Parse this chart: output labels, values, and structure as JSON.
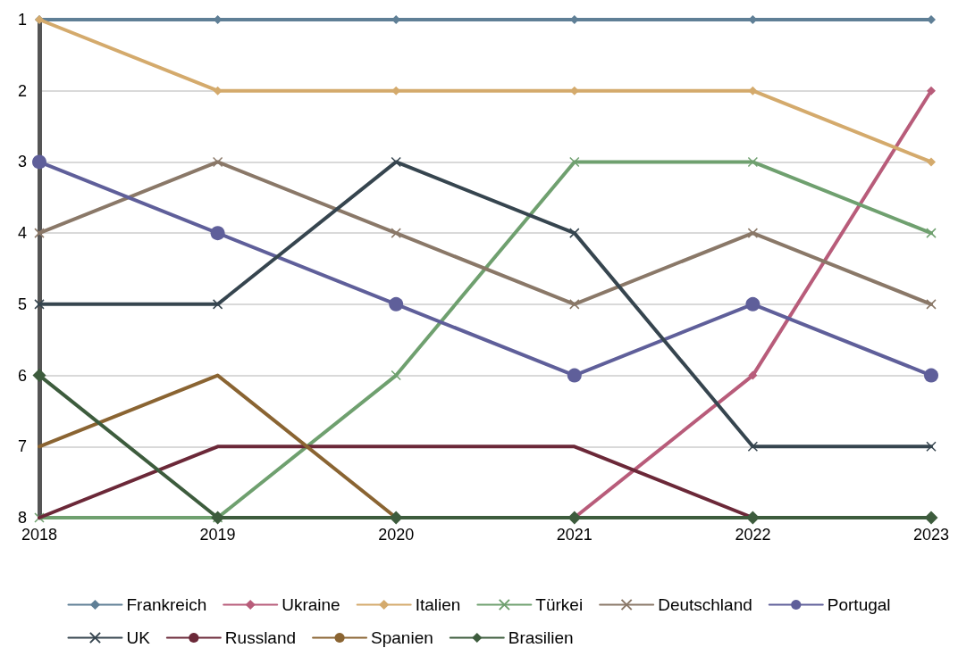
{
  "chart_data": {
    "type": "line",
    "categories": [
      "2018",
      "2019",
      "2020",
      "2021",
      "2022",
      "2023"
    ],
    "ylim": [
      8,
      1
    ],
    "yticks": [
      1,
      2,
      3,
      4,
      5,
      6,
      7,
      8
    ],
    "grid": "y",
    "legend": "bottom",
    "series": [
      {
        "name": "Frankreich",
        "color": "#5f7f96",
        "marker": "diamond",
        "values": [
          1,
          1,
          1,
          1,
          1,
          1
        ]
      },
      {
        "name": "Ukraine",
        "color": "#b85c7a",
        "marker": "diamond",
        "values": [
          null,
          null,
          null,
          8,
          6,
          2
        ]
      },
      {
        "name": "Italien",
        "color": "#d4aa6c",
        "marker": "diamond",
        "values": [
          1,
          2,
          2,
          2,
          2,
          3
        ]
      },
      {
        "name": "Türkei",
        "color": "#6fa06f",
        "marker": "cross",
        "values": [
          8,
          8,
          6,
          3,
          3,
          4
        ]
      },
      {
        "name": "Deutschland",
        "color": "#8a7868",
        "marker": "cross",
        "values": [
          4,
          3,
          4,
          5,
          4,
          5
        ]
      },
      {
        "name": "Portugal",
        "color": "#5f5f9a",
        "marker": "circle",
        "values": [
          3,
          4,
          5,
          6,
          5,
          6
        ]
      },
      {
        "name": "UK",
        "color": "#36454f",
        "marker": "cross",
        "values": [
          5,
          5,
          3,
          4,
          7,
          7
        ]
      },
      {
        "name": "Russland",
        "color": "#6b2838",
        "marker": "none",
        "values": [
          8,
          7,
          7,
          7,
          8,
          null
        ]
      },
      {
        "name": "Spanien",
        "color": "#8a6432",
        "marker": "none",
        "values": [
          7,
          6,
          8,
          null,
          null,
          null
        ]
      },
      {
        "name": "Brasilien",
        "color": "#3d5c3d",
        "marker": "diamond",
        "values": [
          6,
          8,
          8,
          8,
          8,
          8
        ]
      }
    ]
  }
}
